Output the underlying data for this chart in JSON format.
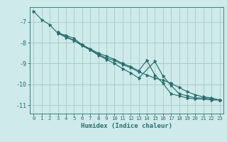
{
  "xlabel": "Humidex (Indice chaleur)",
  "bg_color": "#ceeaea",
  "grid_color": "#aacece",
  "line_color": "#2a6e6e",
  "xlim": [
    -0.5,
    23.5
  ],
  "ylim": [
    -11.4,
    -6.3
  ],
  "yticks": [
    -11,
    -10,
    -9,
    -8,
    -7
  ],
  "xticks": [
    0,
    1,
    2,
    3,
    4,
    5,
    6,
    7,
    8,
    9,
    10,
    11,
    12,
    13,
    14,
    15,
    16,
    17,
    18,
    19,
    20,
    21,
    22,
    23
  ],
  "series_x": [
    [
      0,
      1,
      2,
      3,
      4,
      5,
      6,
      7,
      8,
      9,
      10,
      11,
      12,
      13,
      14,
      15,
      16,
      17,
      18,
      19,
      20,
      21,
      22,
      23
    ],
    [
      3,
      4,
      5,
      6,
      7,
      8,
      9,
      10,
      11,
      12,
      13,
      14,
      15,
      16,
      17,
      18,
      19,
      20,
      21,
      22,
      23
    ],
    [
      3,
      4,
      5,
      6,
      7,
      8,
      9,
      10,
      11,
      12,
      13,
      15,
      16,
      17,
      18,
      19,
      20,
      21,
      22,
      23
    ]
  ],
  "series_y": [
    [
      -6.5,
      -6.9,
      -7.15,
      -7.55,
      -7.75,
      -7.9,
      -8.1,
      -8.3,
      -8.5,
      -8.65,
      -8.8,
      -9.0,
      -9.15,
      -9.35,
      -8.85,
      -9.55,
      -9.95,
      -10.45,
      -10.55,
      -10.65,
      -10.7,
      -10.7,
      -10.75,
      -10.75
    ],
    [
      -7.55,
      -7.65,
      -7.8,
      -8.1,
      -8.35,
      -8.55,
      -8.75,
      -8.85,
      -9.05,
      -9.2,
      -9.4,
      -9.55,
      -9.7,
      -9.8,
      -9.95,
      -10.15,
      -10.35,
      -10.5,
      -10.6,
      -10.65,
      -10.75
    ],
    [
      -7.5,
      -7.7,
      -7.9,
      -8.15,
      -8.35,
      -8.6,
      -8.8,
      -9.0,
      -9.25,
      -9.45,
      -9.7,
      -8.9,
      -9.6,
      -10.05,
      -10.45,
      -10.55,
      -10.65,
      -10.65,
      -10.7,
      -10.75
    ]
  ]
}
